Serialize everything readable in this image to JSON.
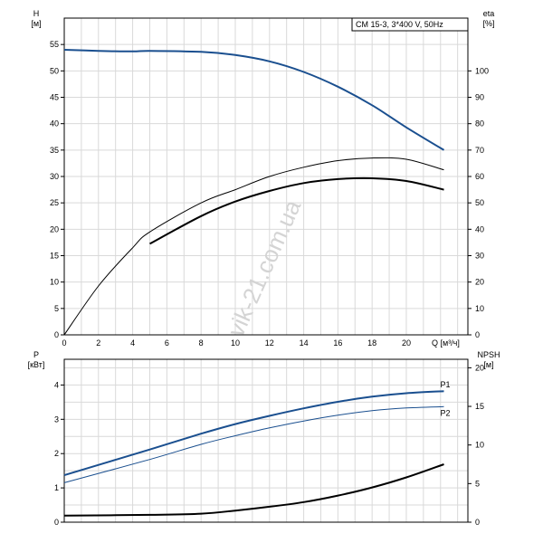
{
  "chart_data": [
    {
      "type": "line",
      "title": "CM 15-3, 3*400 V, 50Hz",
      "xlabel": "Q [м³/ч]",
      "x_ticks": [
        "0",
        "2",
        "4",
        "6",
        "8",
        "10",
        "12",
        "14",
        "16",
        "18",
        "20"
      ],
      "left_axis": {
        "name": "H",
        "unit": "[м]",
        "ylim": [
          0,
          60
        ],
        "ticks": [
          "0",
          "5",
          "10",
          "15",
          "20",
          "25",
          "30",
          "35",
          "40",
          "45",
          "50",
          "55"
        ]
      },
      "right_axis": {
        "name": "eta",
        "unit": "[%]",
        "ylim": [
          0,
          120
        ],
        "ticks": [
          "0",
          "10",
          "20",
          "30",
          "40",
          "50",
          "60",
          "70",
          "80",
          "90",
          "100"
        ]
      },
      "grid": true,
      "series": [
        {
          "axis": "left",
          "color": "#1a4f8f",
          "x": [
            0,
            2,
            4,
            5,
            8,
            10,
            12,
            14,
            16,
            18,
            20,
            22.2
          ],
          "y": [
            54.0,
            53.8,
            53.7,
            53.8,
            53.6,
            53.0,
            51.8,
            49.8,
            47.0,
            43.5,
            39.3,
            35.0
          ]
        },
        {
          "axis": "right",
          "color": "#000000",
          "x": [
            0,
            2,
            4,
            5,
            8,
            10,
            12,
            14,
            16,
            18,
            20,
            22.2
          ],
          "y": [
            0,
            18.5,
            33,
            39,
            50,
            55,
            60,
            63.5,
            66,
            67,
            66.5,
            62.5
          ]
        },
        {
          "axis": "right",
          "color": "#000000",
          "x": [
            5,
            8,
            10,
            12,
            14,
            16,
            18,
            20,
            22.2
          ],
          "y": [
            34.5,
            45,
            50.5,
            54.5,
            57.5,
            59,
            59.3,
            58.3,
            55
          ]
        }
      ],
      "watermark": "vik-21.com.ua"
    },
    {
      "type": "line",
      "xlabel": "",
      "x_ticks": [],
      "left_axis": {
        "name": "P",
        "unit": "[кВт]",
        "ylim": [
          0,
          4.5
        ],
        "ticks": [
          "0",
          "1",
          "2",
          "3",
          "4"
        ]
      },
      "right_axis": {
        "name": "NPSH",
        "unit": "[м]",
        "ylim": [
          0,
          20
        ],
        "ticks": [
          "0",
          "5",
          "10",
          "15",
          "20"
        ]
      },
      "grid": true,
      "series": [
        {
          "name": "P1",
          "axis": "left",
          "color": "#1a4f8f",
          "x": [
            0,
            5,
            8,
            10,
            12,
            14,
            16,
            18,
            20,
            22.2
          ],
          "y": [
            1.37,
            2.12,
            2.58,
            2.86,
            3.1,
            3.32,
            3.51,
            3.66,
            3.76,
            3.82
          ]
        },
        {
          "name": "P2",
          "axis": "left",
          "color": "#1a4f8f",
          "x": [
            0,
            5,
            8,
            10,
            12,
            14,
            16,
            18,
            20,
            22.2
          ],
          "y": [
            1.15,
            1.83,
            2.27,
            2.52,
            2.75,
            2.95,
            3.12,
            3.25,
            3.33,
            3.37
          ]
        },
        {
          "axis": "right",
          "color": "#000000",
          "x": [
            0,
            5,
            8,
            10,
            12,
            14,
            16,
            18,
            20,
            22.2
          ],
          "y": [
            0.85,
            0.95,
            1.1,
            1.5,
            2.0,
            2.6,
            3.45,
            4.5,
            5.8,
            7.5
          ]
        }
      ]
    }
  ]
}
